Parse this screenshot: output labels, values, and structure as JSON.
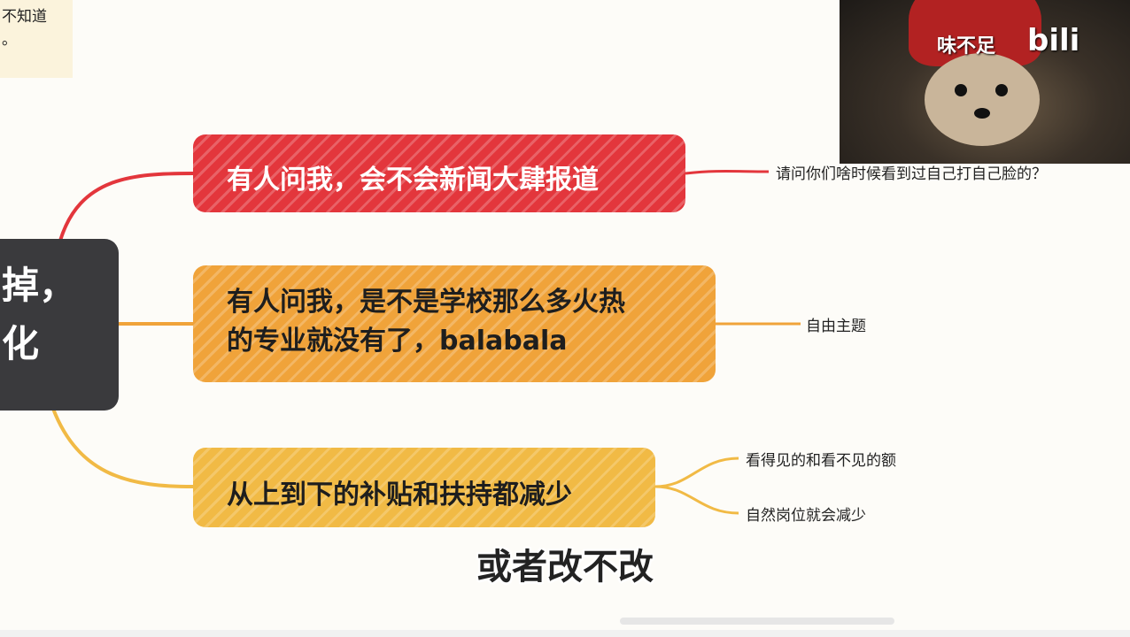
{
  "top_note": {
    "line1": "不知道",
    "line2": "。"
  },
  "central_node": {
    "line1": "掉，",
    "line2": "化"
  },
  "branches": [
    {
      "lines": [
        "有人问我，会不会新闻大肆报道"
      ],
      "color": "#e3363c",
      "leaves": [
        "请问你们啥时候看到过自己打自己脸的？"
      ]
    },
    {
      "lines": [
        "有人问我，是不是学校那么多火热",
        "的专业就没有了，balabala"
      ],
      "color": "#f0a33a",
      "leaves": [
        "自由主题"
      ]
    },
    {
      "lines": [
        "从上到下的补贴和扶持都减少"
      ],
      "color": "#f1ba45",
      "leaves": [
        "看得见的和看不见的额",
        "自然岗位就会减少"
      ]
    }
  ],
  "webcam": {
    "overlay_text": "味不足",
    "logo": "bili"
  },
  "subtitle": "或者改不改"
}
